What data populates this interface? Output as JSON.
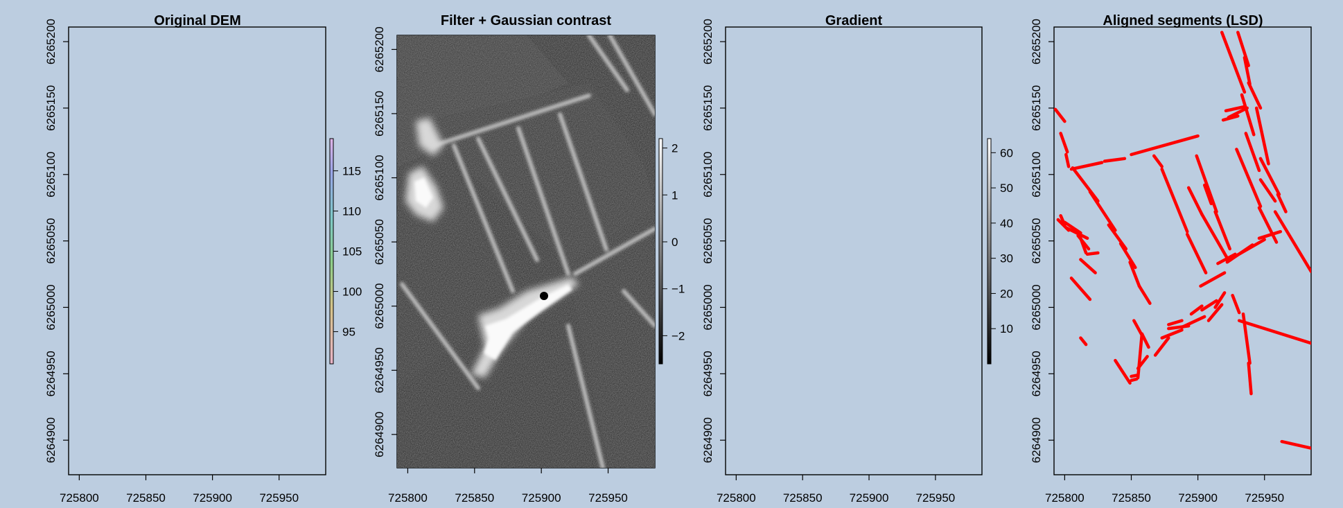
{
  "background": "#bccde0",
  "segment_color": "#ff0000",
  "chart_data": [
    {
      "type": "heatmap",
      "title": "Original DEM",
      "x_ticks": [
        725800,
        725850,
        725900,
        725950
      ],
      "y_ticks": [
        6265200,
        6265150,
        6265100,
        6265050,
        6265000,
        6264950,
        6264900
      ],
      "xlim": [
        725792,
        725985
      ],
      "ylim": [
        6264874,
        6265211
      ],
      "colorbar": {
        "ticks": [
          95,
          100,
          105,
          110,
          115
        ],
        "range": [
          91,
          119
        ]
      }
    },
    {
      "type": "heatmap",
      "title": "Filter + Gaussian contrast",
      "x_ticks": [
        725800,
        725850,
        725900,
        725950
      ],
      "y_ticks": [
        6265200,
        6265150,
        6265100,
        6265050,
        6265000,
        6264950,
        6264900
      ],
      "xlim": [
        725792,
        725985
      ],
      "ylim": [
        6264874,
        6265211
      ],
      "colorbar": {
        "ticks": [
          2,
          1,
          0,
          -1,
          -2
        ],
        "range": [
          -2.6,
          2.2
        ]
      }
    },
    {
      "type": "heatmap",
      "title": "Gradient",
      "x_ticks": [
        725800,
        725850,
        725900,
        725950
      ],
      "y_ticks": [
        6265200,
        6265150,
        6265100,
        6265050,
        6265000,
        6264950,
        6264900
      ],
      "xlim": [
        725792,
        725985
      ],
      "ylim": [
        6264874,
        6265211
      ],
      "colorbar": {
        "ticks": [
          60,
          50,
          40,
          30,
          20,
          10
        ],
        "range": [
          0,
          64
        ]
      }
    },
    {
      "type": "line",
      "title": "Aligned segments (LSD)",
      "x_ticks": [
        725800,
        725850,
        725900,
        725950
      ],
      "y_ticks": [
        6265200,
        6265150,
        6265100,
        6265050,
        6265000,
        6264950,
        6264900
      ],
      "xlim": [
        725792,
        725985
      ],
      "ylim": [
        6264874,
        6265211
      ],
      "segments": [
        [
          725918,
          6265207,
          725935,
          6265162
        ],
        [
          725930,
          6265207,
          725938,
          6265182
        ],
        [
          725935,
          6265188,
          725939,
          6265168
        ],
        [
          725938,
          6265169,
          725947,
          6265150
        ],
        [
          725933,
          6265160,
          725942,
          6265130
        ],
        [
          725944,
          6265150,
          725953,
          6265108
        ],
        [
          725936,
          6265131,
          725946,
          6265103
        ],
        [
          725947,
          6265112,
          725961,
          6265085
        ],
        [
          725947,
          6265096,
          725958,
          6265080
        ],
        [
          725960,
          6265085,
          725966,
          6265072
        ],
        [
          725958,
          6265072,
          725985,
          6265027
        ],
        [
          725921,
          6265148,
          725935,
          6265151
        ],
        [
          725923,
          6265143,
          725937,
          6265150
        ],
        [
          725919,
          6265141,
          725930,
          6265144
        ],
        [
          725850,
          6265115,
          725900,
          6265129
        ],
        [
          725830,
          6265110,
          725845,
          6265112
        ],
        [
          725805,
          6265104,
          725828,
          6265109
        ],
        [
          725793,
          6265149,
          725800,
          6265140
        ],
        [
          725797,
          6265131,
          725802,
          6265117
        ],
        [
          725801,
          6265115,
          725803,
          6265106
        ],
        [
          725806,
          6265105,
          725825,
          6265080
        ],
        [
          725819,
          6265087,
          725838,
          6265058
        ],
        [
          725833,
          6265062,
          725846,
          6265044
        ],
        [
          725842,
          6265048,
          725853,
          6265030
        ],
        [
          725849,
          6265034,
          725856,
          6265016
        ],
        [
          725856,
          6265016,
          725864,
          6265003
        ],
        [
          725795,
          6265066,
          725803,
          6265058
        ],
        [
          725797,
          6265069,
          725800,
          6265062
        ],
        [
          725800,
          6265064,
          725812,
          6265056
        ],
        [
          725801,
          6265060,
          725817,
          6265052
        ],
        [
          725810,
          6265054,
          725818,
          6265044
        ],
        [
          725812,
          6265052,
          725816,
          6265041
        ],
        [
          725817,
          6265040,
          725825,
          6265041
        ],
        [
          725812,
          6265036,
          725823,
          6265026
        ],
        [
          725805,
          6265022,
          725819,
          6265006
        ],
        [
          725812,
          6264977,
          725816,
          6264972
        ],
        [
          725867,
          6265114,
          725873,
          6265106
        ],
        [
          725873,
          6265104,
          725892,
          6265057
        ],
        [
          725892,
          6265055,
          725906,
          6265026
        ],
        [
          725899,
          6265114,
          725914,
          6265072
        ],
        [
          725913,
          6265072,
          725924,
          6265044
        ],
        [
          725929,
          6265119,
          725947,
          6265076
        ],
        [
          725946,
          6265075,
          725959,
          6265049
        ],
        [
          725905,
          6265092,
          725910,
          6265078
        ],
        [
          725893,
          6265090,
          725903,
          6265070
        ],
        [
          725903,
          6265070,
          725922,
          6265037
        ],
        [
          725922,
          6265035,
          725950,
          6265051
        ],
        [
          725922,
          6265034,
          725941,
          6265047
        ],
        [
          725946,
          6265052,
          725962,
          6265057
        ],
        [
          725915,
          6265033,
          725928,
          6265040
        ],
        [
          725895,
          6264995,
          725903,
          6265001
        ],
        [
          725903,
          6264998,
          725914,
          6265005
        ],
        [
          725908,
          6264990,
          725918,
          6265002
        ],
        [
          725913,
          6265000,
          725920,
          6265011
        ],
        [
          725902,
          6265016,
          725920,
          6265026
        ],
        [
          725878,
          6264987,
          725888,
          6264990
        ],
        [
          725878,
          6264984,
          725893,
          6264986
        ],
        [
          725888,
          6264985,
          725905,
          6264993
        ],
        [
          725873,
          6264977,
          725888,
          6264983
        ],
        [
          725868,
          6264964,
          725878,
          6264977
        ],
        [
          725855,
          6264954,
          725862,
          6264963
        ],
        [
          725850,
          6264948,
          725855,
          6264949
        ],
        [
          725838,
          6264960,
          725849,
          6264943
        ],
        [
          725852,
          6264990,
          725858,
          6264979
        ],
        [
          725850,
          6264945,
          725854,
          6264946
        ],
        [
          725855,
          6264947,
          725858,
          6264980
        ],
        [
          725858,
          6264980,
          725863,
          6264970
        ],
        [
          725926,
          6265009,
          725931,
          6264996
        ],
        [
          725934,
          6264995,
          725939,
          6264958
        ],
        [
          725938,
          6264958,
          725940,
          6264935
        ],
        [
          725931,
          6264990,
          725985,
          6264973
        ],
        [
          725963,
          6264899,
          725985,
          6264894
        ]
      ]
    }
  ]
}
